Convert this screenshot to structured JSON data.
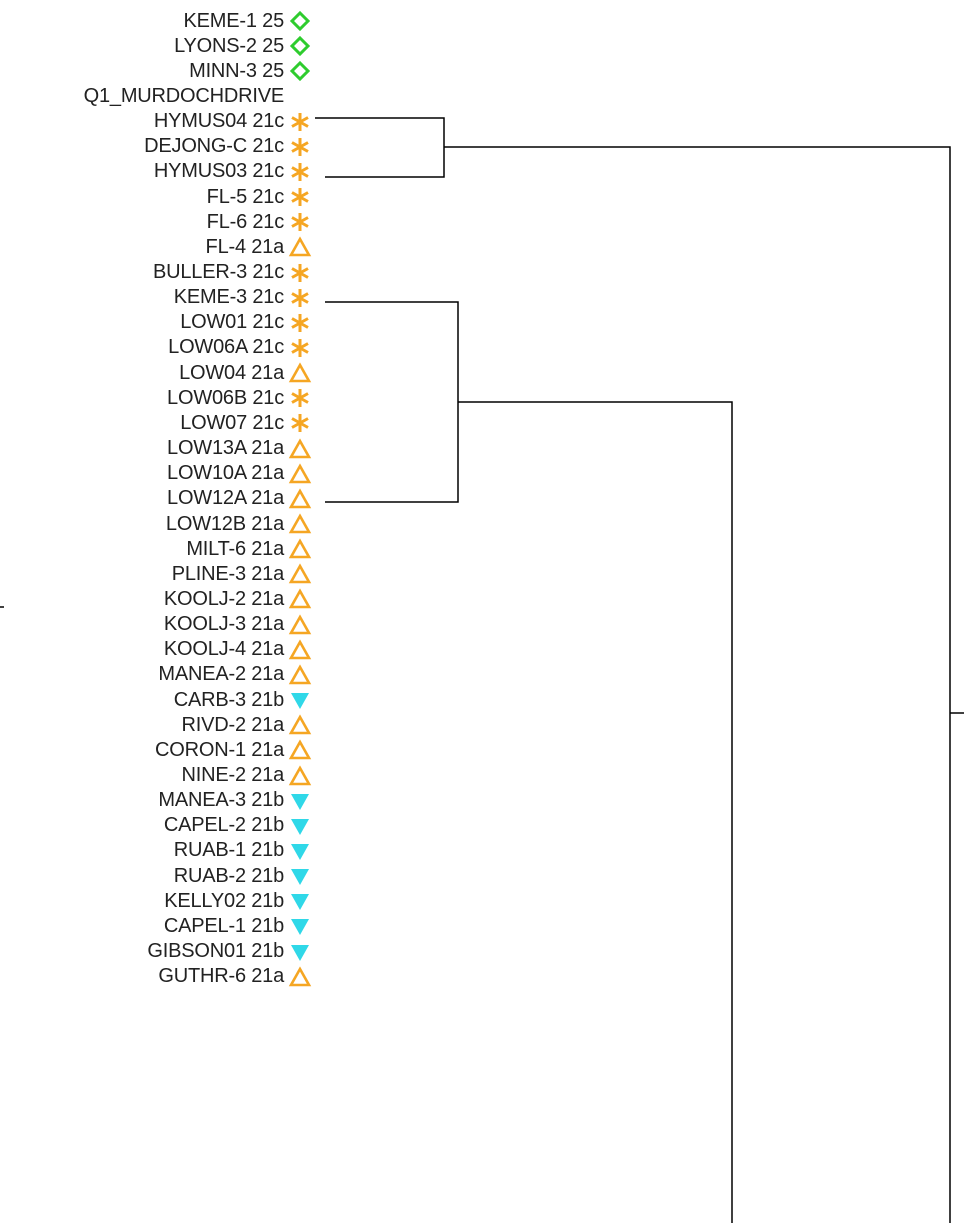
{
  "leaves": [
    {
      "label": "KEME-1 25",
      "icon": "diamond-icon"
    },
    {
      "label": "LYONS-2 25",
      "icon": "diamond-icon"
    },
    {
      "label": "MINN-3 25",
      "icon": "diamond-icon"
    },
    {
      "label": "Q1_MURDOCHDRIVE",
      "icon": ""
    },
    {
      "label": "HYMUS04 21c",
      "icon": "asterisk-icon"
    },
    {
      "label": "DEJONG-C 21c",
      "icon": "asterisk-icon"
    },
    {
      "label": "HYMUS03 21c",
      "icon": "asterisk-icon"
    },
    {
      "label": "FL-5 21c",
      "icon": "asterisk-icon"
    },
    {
      "label": "FL-6 21c",
      "icon": "asterisk-icon"
    },
    {
      "label": "FL-4 21a",
      "icon": "triangle-up-icon"
    },
    {
      "label": "BULLER-3 21c",
      "icon": "asterisk-icon"
    },
    {
      "label": "KEME-3 21c",
      "icon": "asterisk-icon"
    },
    {
      "label": "LOW01 21c",
      "icon": "asterisk-icon"
    },
    {
      "label": "LOW06A 21c",
      "icon": "asterisk-icon"
    },
    {
      "label": "LOW04 21a",
      "icon": "triangle-up-icon"
    },
    {
      "label": "LOW06B 21c",
      "icon": "asterisk-icon"
    },
    {
      "label": "LOW07 21c",
      "icon": "asterisk-icon"
    },
    {
      "label": "LOW13A 21a",
      "icon": "triangle-up-icon"
    },
    {
      "label": "LOW10A 21a",
      "icon": "triangle-up-icon"
    },
    {
      "label": "LOW12A 21a",
      "icon": "triangle-up-icon"
    },
    {
      "label": "LOW12B 21a",
      "icon": "triangle-up-icon"
    },
    {
      "label": "MILT-6 21a",
      "icon": "triangle-up-icon"
    },
    {
      "label": "PLINE-3 21a",
      "icon": "triangle-up-icon"
    },
    {
      "label": "KOOLJ-2 21a",
      "icon": "triangle-up-icon"
    },
    {
      "label": "KOOLJ-3 21a",
      "icon": "triangle-up-icon"
    },
    {
      "label": "KOOLJ-4 21a",
      "icon": "triangle-up-icon"
    },
    {
      "label": "MANEA-2 21a",
      "icon": "triangle-up-icon"
    },
    {
      "label": "CARB-3 21b",
      "icon": "triangle-down-icon"
    },
    {
      "label": "RIVD-2 21a",
      "icon": "triangle-up-icon"
    },
    {
      "label": "CORON-1 21a",
      "icon": "triangle-up-icon"
    },
    {
      "label": "NINE-2 21a",
      "icon": "triangle-up-icon"
    },
    {
      "label": "MANEA-3 21b",
      "icon": "triangle-down-icon"
    },
    {
      "label": "CAPEL-2 21b",
      "icon": "triangle-down-icon"
    },
    {
      "label": "RUAB-1 21b",
      "icon": "triangle-down-icon"
    },
    {
      "label": "RUAB-2 21b",
      "icon": "triangle-down-icon"
    },
    {
      "label": "KELLY02 21b",
      "icon": "triangle-down-icon"
    },
    {
      "label": "CAPEL-1 21b",
      "icon": "triangle-down-icon"
    },
    {
      "label": "GIBSON01 21b",
      "icon": "triangle-down-icon"
    },
    {
      "label": "GUTHR-6 21a",
      "icon": "triangle-up-icon"
    }
  ],
  "icon_colors": {
    "diamond-icon": "#2ecc2e",
    "asterisk-icon": "#f5a623",
    "triangle-up-icon": "#f5a623",
    "triangle-down-icon": "#2fd8e8"
  }
}
